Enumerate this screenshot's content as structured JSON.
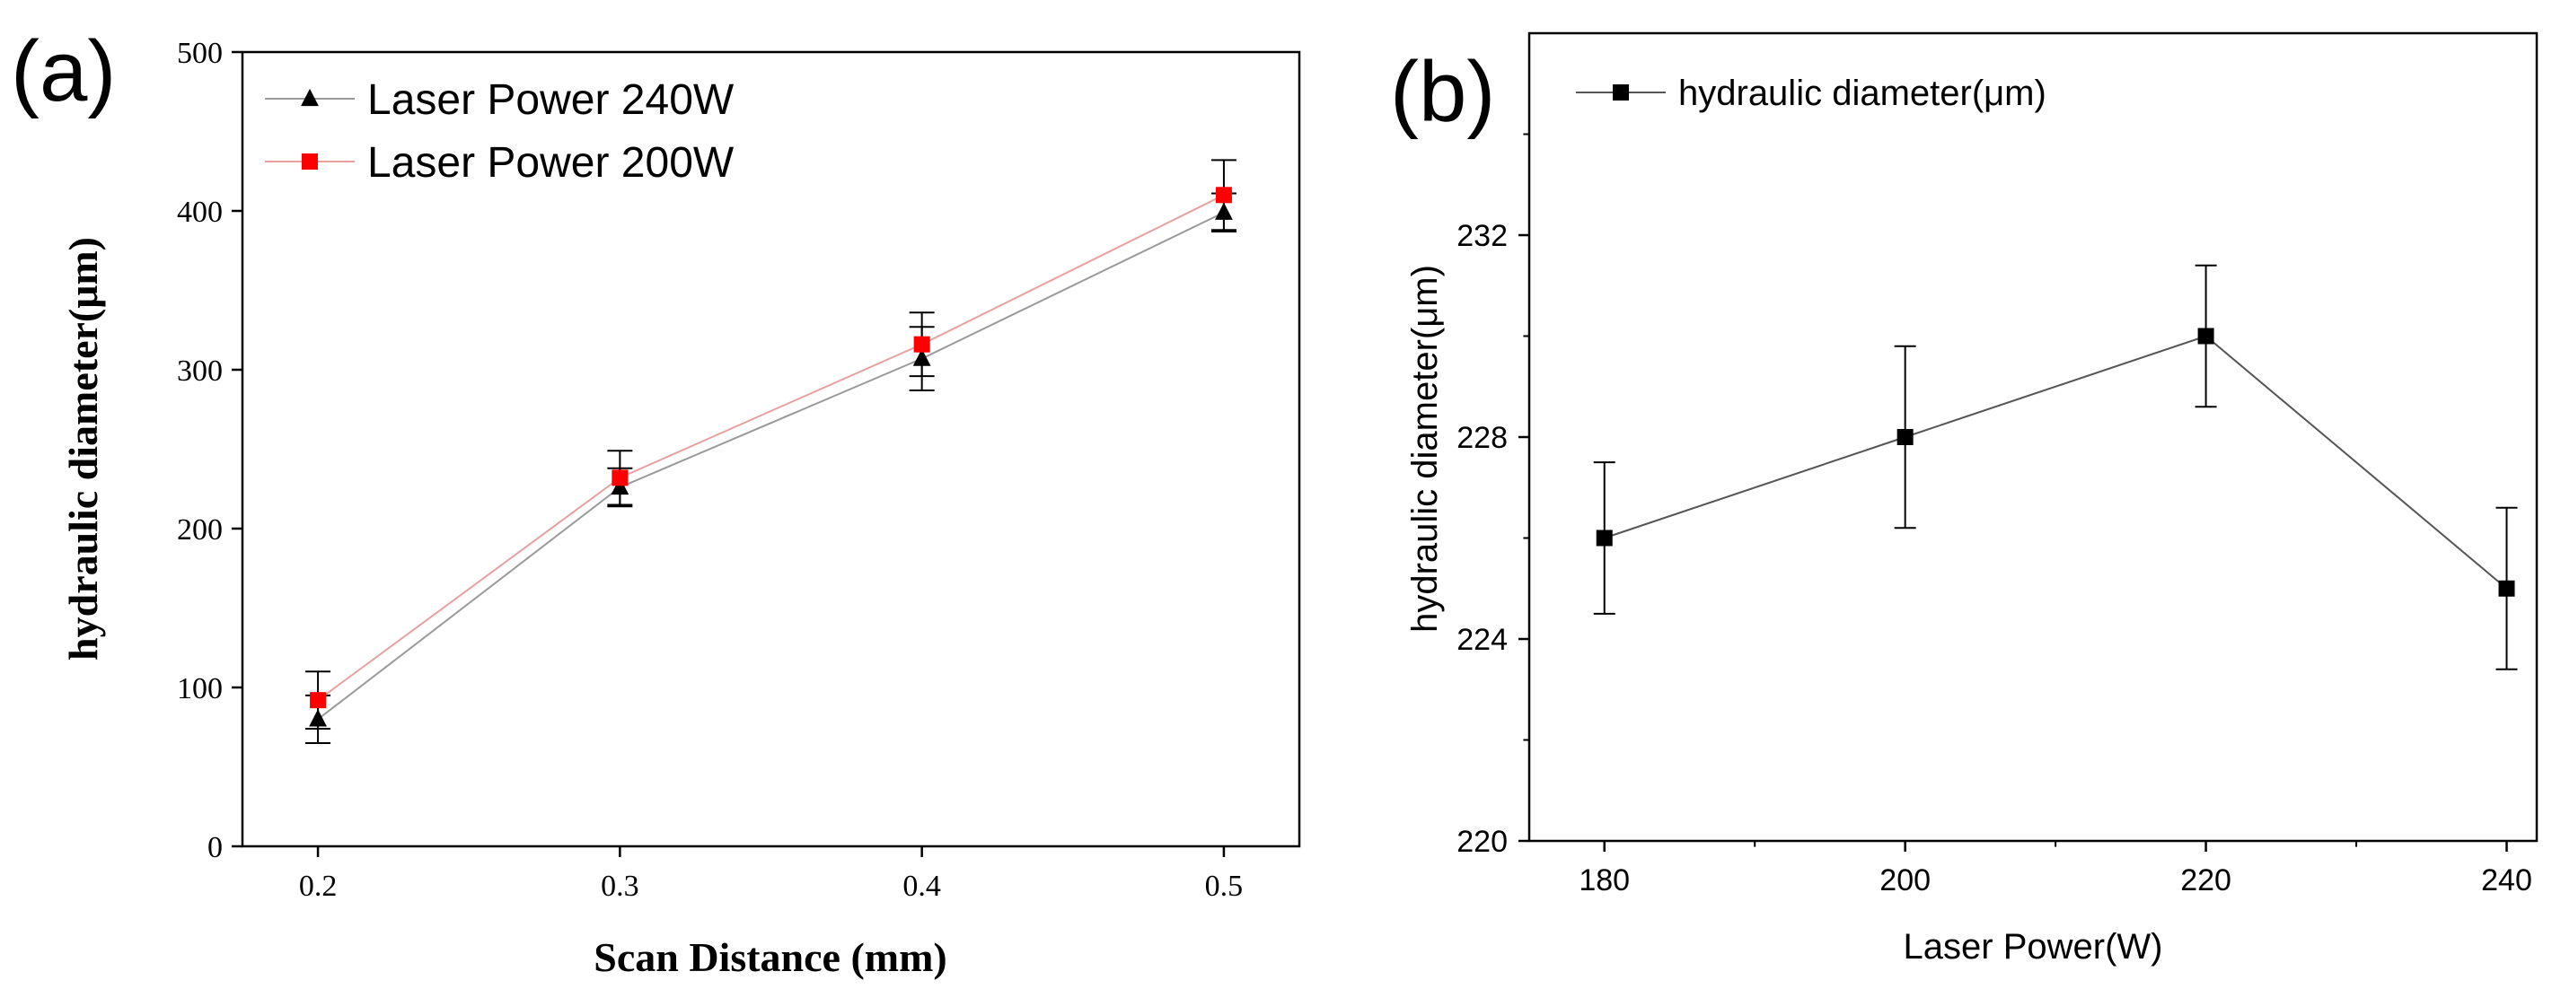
{
  "chart_data": [
    {
      "type": "line",
      "panel_label": "(a)",
      "title": "",
      "xlabel": "Scan Distance (mm)",
      "ylabel": "hydraulic diameter(μm)",
      "xlim": [
        0.175,
        0.525
      ],
      "ylim": [
        0,
        500
      ],
      "xticks": [
        0.2,
        0.3,
        0.4,
        0.5
      ],
      "xtick_labels": [
        "0.2",
        "0.3",
        "0.4",
        "0.5"
      ],
      "yticks": [
        0,
        100,
        200,
        300,
        400,
        500
      ],
      "ytick_labels": [
        "0",
        "100",
        "200",
        "300",
        "400",
        "500"
      ],
      "legend_position": "top-left",
      "grid": false,
      "x": [
        0.2,
        0.3,
        0.4,
        0.5
      ],
      "series": [
        {
          "name": "Laser Power 240W",
          "marker": "triangle",
          "line_color": "#9a9a9a",
          "marker_color": "#000000",
          "values": [
            80,
            226,
            307,
            399
          ],
          "errors": [
            15,
            12,
            20,
            12
          ]
        },
        {
          "name": "Laser Power 200W",
          "marker": "square",
          "line_color": "#e8a0a0",
          "marker_color": "#ff0000",
          "values": [
            92,
            232,
            316,
            410
          ],
          "errors": [
            18,
            17,
            20,
            22
          ]
        }
      ]
    },
    {
      "type": "line",
      "panel_label": "(b)",
      "title": "",
      "xlabel": "Laser Power(W)",
      "ylabel": "hydraulic diameter(μm)",
      "xlim": [
        175,
        242
      ],
      "ylim": [
        220,
        236
      ],
      "xticks": [
        180,
        200,
        220,
        240
      ],
      "xtick_labels": [
        "180",
        "200",
        "220",
        "240"
      ],
      "yticks": [
        220,
        224,
        228,
        232
      ],
      "ytick_labels": [
        "220",
        "224",
        "228",
        "232"
      ],
      "legend_position": "top-left",
      "grid": false,
      "x": [
        180,
        200,
        220,
        240
      ],
      "series": [
        {
          "name": "hydraulic diameter(μm)",
          "marker": "square",
          "line_color": "#555555",
          "marker_color": "#000000",
          "values": [
            226,
            228,
            230,
            225
          ],
          "errors": [
            1.5,
            1.8,
            1.4,
            1.6
          ]
        }
      ]
    }
  ]
}
